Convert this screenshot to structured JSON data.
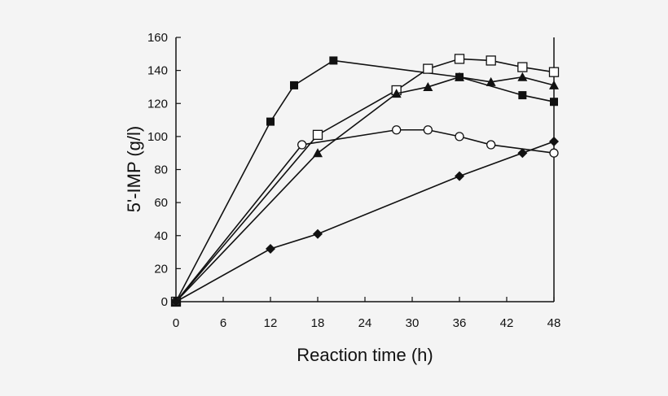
{
  "chart_data": {
    "type": "line",
    "title": "",
    "xlabel": "Reaction time (h)",
    "ylabel": "5'-IMP (g/l)",
    "xlim": [
      0,
      48
    ],
    "ylim": [
      0,
      160
    ],
    "xticks": [
      0,
      6,
      12,
      18,
      24,
      30,
      36,
      42,
      48
    ],
    "yticks": [
      0,
      20,
      40,
      60,
      80,
      100,
      120,
      140,
      160
    ],
    "grid": false,
    "series": [
      {
        "marker": "filled-square",
        "x": [
          0,
          12,
          15,
          20,
          36,
          44,
          48
        ],
        "y": [
          0,
          109,
          131,
          146,
          136,
          125,
          121
        ]
      },
      {
        "marker": "open-square",
        "x": [
          0,
          18,
          28,
          32,
          36,
          40,
          44,
          48
        ],
        "y": [
          0,
          101,
          128,
          141,
          147,
          146,
          142,
          139
        ]
      },
      {
        "marker": "filled-triangle",
        "x": [
          0,
          18,
          28,
          32,
          36,
          40,
          44,
          48
        ],
        "y": [
          0,
          90,
          126,
          130,
          136,
          133,
          136,
          131
        ]
      },
      {
        "marker": "open-circle",
        "x": [
          0,
          16,
          28,
          32,
          36,
          40,
          48
        ],
        "y": [
          0,
          95,
          104,
          104,
          100,
          95,
          90
        ]
      },
      {
        "marker": "filled-diamond",
        "x": [
          0,
          12,
          18,
          36,
          44,
          48
        ],
        "y": [
          0,
          32,
          41,
          76,
          90,
          97
        ]
      }
    ],
    "colors": {
      "line": "#111111",
      "background": "#f4f4f4"
    }
  }
}
